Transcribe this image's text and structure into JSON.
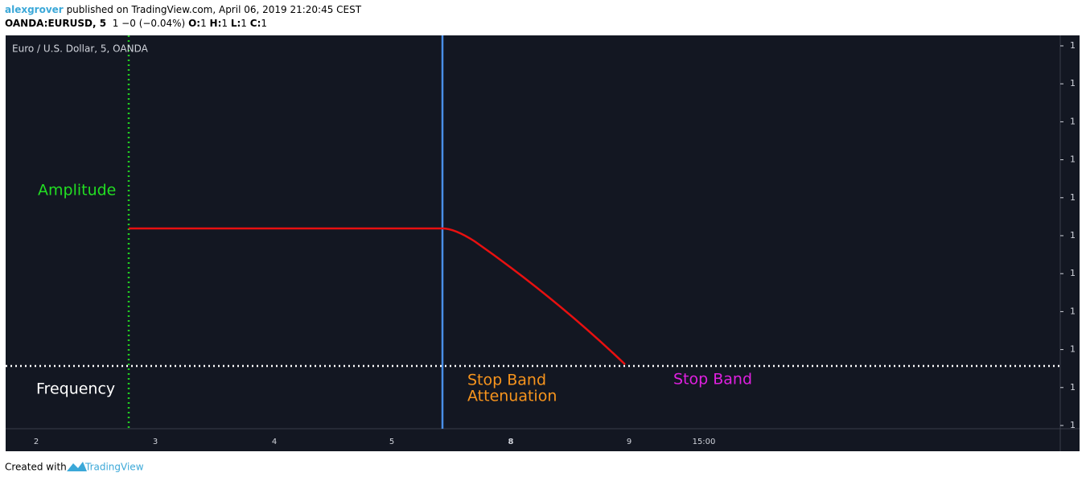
{
  "header": {
    "author": "alexgrover",
    "published": "published on TradingView.com, April 06, 2019 21:20:45 CEST",
    "symbol": "OANDA:EURUSD, 5",
    "change": "1 −0 (−0.04%)",
    "ohlc": [
      {
        "label": "O:",
        "value": "1"
      },
      {
        "label": "H:",
        "value": "1"
      },
      {
        "label": "L:",
        "value": "1"
      },
      {
        "label": "C:",
        "value": "1"
      }
    ]
  },
  "chart": {
    "legend_title": "Euro / U.S. Dollar, 5, OANDA",
    "annotations": {
      "amplitude": "Amplitude",
      "frequency": "Frequency",
      "attenuation": [
        "Stop Band",
        "Attenuation"
      ],
      "stop_band": "Stop Band"
    },
    "price_axis_labels": [
      "1",
      "1",
      "1",
      "1",
      "1",
      "1",
      "1",
      "1",
      "1",
      "1",
      "1"
    ],
    "time_axis_labels": [
      "2",
      "3",
      "4",
      "5",
      "8",
      "9",
      "15:00"
    ]
  },
  "footer": {
    "created_with": "Created with",
    "brand": "TradingView"
  }
}
